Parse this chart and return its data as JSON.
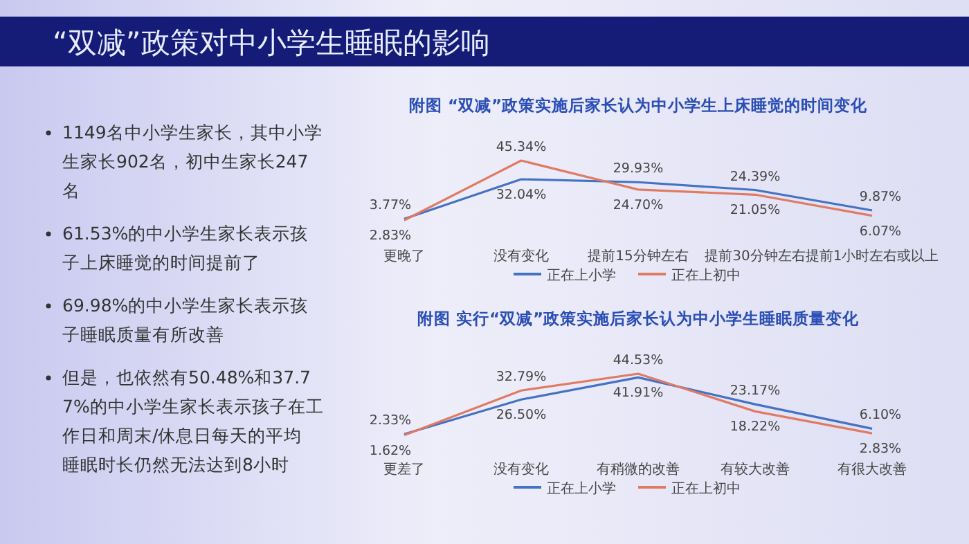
{
  "chart_data": [
    {
      "type": "other",
      "title": "“双减”政策对中小学生睡眠的影响",
      "annotations": [
        "1149名中小学生家长，其中小学生家长902名，初中生家长247名",
        "61.53%的中小学生家长表示孩子上床睡觉的时间提前了",
        "69.98%的中小学生家长表示孩子睡眠质量有所改善",
        "但是，也依然有50.48%和37.77%的中小学生家长表示孩子在工作日和周末/休息日每天的平均睡眠时长仍然无法达到8小时"
      ]
    },
    {
      "type": "line",
      "title": "附图 “双减”政策实施后家长认为中小学生上床睡觉的时间变化",
      "categories": [
        "更晚了",
        "没有变化",
        "提前15分钟左右",
        "提前30分钟左右",
        "提前1小时左右或以上"
      ],
      "series": [
        {
          "name": "正在上小学",
          "color": "#4472c4",
          "values": [
            3.77,
            32.04,
            29.93,
            24.39,
            9.87
          ],
          "value_labels": [
            "3.77%",
            "32.04%",
            "29.93%",
            "24.39%",
            "9.87%"
          ]
        },
        {
          "name": "正在上初中",
          "color": "#e07b63",
          "values": [
            2.83,
            45.34,
            24.7,
            21.05,
            6.07
          ],
          "value_labels": [
            "2.83%",
            "45.34%",
            "24.70%",
            "21.05%",
            "6.07%"
          ]
        }
      ],
      "legend": "bottom"
    },
    {
      "type": "line",
      "title": "附图 实行“双减”政策实施后家长认为中小学生睡眠质量变化",
      "categories": [
        "更差了",
        "没有变化",
        "有稍微的改善",
        "有较大改善",
        "有很大改善"
      ],
      "series": [
        {
          "name": "正在上小学",
          "color": "#4472c4",
          "values": [
            2.33,
            26.5,
            41.91,
            23.17,
            6.1
          ],
          "value_labels": [
            "2.33%",
            "26.50%",
            "41.91%",
            "23.17%",
            "6.10%"
          ]
        },
        {
          "name": "正在上初中",
          "color": "#e07b63",
          "values": [
            1.62,
            32.79,
            44.53,
            18.22,
            2.83
          ],
          "value_labels": [
            "1.62%",
            "32.79%",
            "44.53%",
            "18.22%",
            "2.83%"
          ]
        }
      ],
      "legend": "bottom"
    }
  ]
}
